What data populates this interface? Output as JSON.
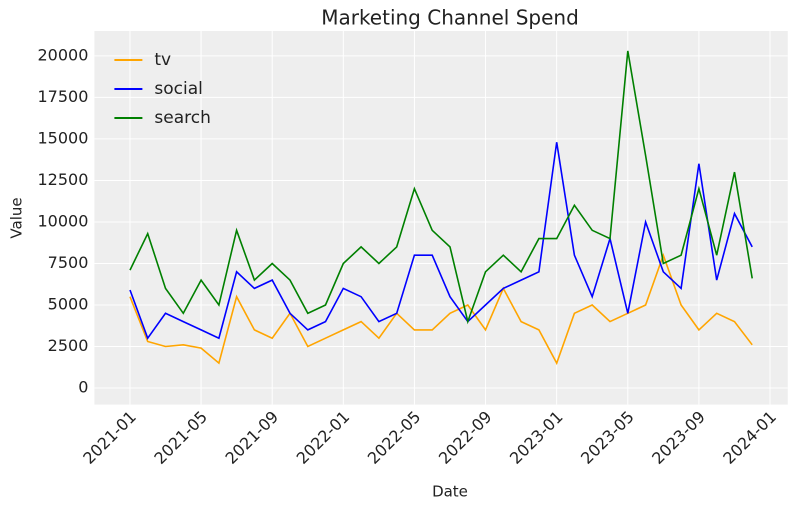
{
  "chart_data": {
    "type": "line",
    "title": "Marketing Channel Spend",
    "xlabel": "Date",
    "ylabel": "Value",
    "x": [
      "2021-01",
      "2021-02",
      "2021-03",
      "2021-04",
      "2021-05",
      "2021-06",
      "2021-07",
      "2021-08",
      "2021-09",
      "2021-10",
      "2021-11",
      "2021-12",
      "2022-01",
      "2022-02",
      "2022-03",
      "2022-04",
      "2022-05",
      "2022-06",
      "2022-07",
      "2022-08",
      "2022-09",
      "2022-10",
      "2022-11",
      "2022-12",
      "2023-01",
      "2023-02",
      "2023-03",
      "2023-04",
      "2023-05",
      "2023-06",
      "2023-07",
      "2023-08",
      "2023-09",
      "2023-10",
      "2023-11",
      "2023-12"
    ],
    "series": [
      {
        "name": "tv",
        "color": "#ffa500",
        "values": [
          5500,
          2800,
          2500,
          2600,
          2400,
          1500,
          5500,
          3500,
          3000,
          4500,
          2500,
          3000,
          3500,
          4000,
          3000,
          4500,
          3500,
          3500,
          4500,
          5000,
          3500,
          6000,
          4000,
          3500,
          1500,
          4500,
          5000,
          4000,
          4500,
          5000,
          8000,
          5000,
          3500,
          4500,
          4000,
          2600
        ]
      },
      {
        "name": "social",
        "color": "#0000ff",
        "values": [
          5900,
          3000,
          4500,
          4000,
          3500,
          3000,
          7000,
          6000,
          6500,
          4500,
          3500,
          4000,
          6000,
          5500,
          4000,
          4500,
          8000,
          8000,
          5500,
          4000,
          5000,
          6000,
          6500,
          7000,
          14800,
          8000,
          5500,
          9000,
          4500,
          10000,
          7000,
          6000,
          13500,
          6500,
          10500,
          8500
        ]
      },
      {
        "name": "search",
        "color": "#008000",
        "values": [
          7100,
          9300,
          6000,
          4500,
          6500,
          5000,
          9500,
          6500,
          7500,
          6500,
          4500,
          5000,
          7500,
          8500,
          7500,
          8500,
          12000,
          9500,
          8500,
          4000,
          7000,
          8000,
          7000,
          9000,
          9000,
          11000,
          9500,
          9000,
          20300,
          14000,
          7500,
          8000,
          12000,
          8000,
          13000,
          6600
        ]
      }
    ],
    "xlim": [
      "2020-11",
      "2024-02"
    ],
    "xticks": [
      "2021-01",
      "2021-05",
      "2021-09",
      "2022-01",
      "2022-05",
      "2022-09",
      "2023-01",
      "2023-05",
      "2023-09",
      "2024-01"
    ],
    "ylim": [
      -1000,
      21500
    ],
    "yticks": [
      0,
      2500,
      5000,
      7500,
      10000,
      12500,
      15000,
      17500,
      20000
    ],
    "grid": true,
    "legend": "upper left"
  }
}
